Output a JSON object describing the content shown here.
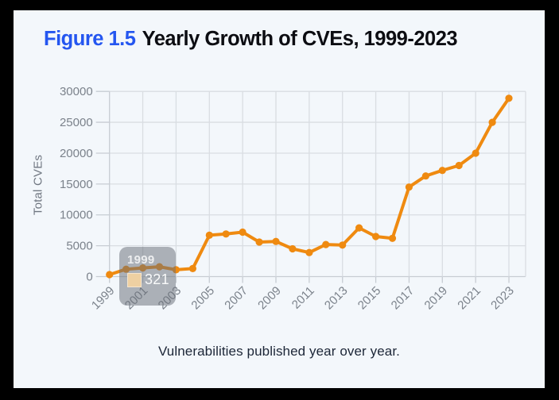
{
  "header": {
    "figure_label": "Figure 1.5",
    "title": "Yearly Growth of CVEs, 1999-2023"
  },
  "caption": "Vulnerabilities published year over year.",
  "tooltip": {
    "title": "1999",
    "value": "321",
    "swatch_color": "#eed0a2"
  },
  "colors": {
    "frame": "#000000",
    "background": "#f3f7fb",
    "figure_label_blue": "#2456f0",
    "title_text": "#0c0d12",
    "line_orange": "#ef8a10",
    "grid": "#d9dde2",
    "axis": "#c7ccd3",
    "tick_text": "#7b828b",
    "caption_text": "#1c2637",
    "tooltip_bg": "rgba(106,111,121,0.52)"
  },
  "chart_data": {
    "type": "line",
    "title": "Yearly Growth of CVEs, 1999-2023",
    "xlabel": "",
    "ylabel": "Total CVEs",
    "x": [
      1999,
      2000,
      2001,
      2002,
      2003,
      2004,
      2005,
      2006,
      2007,
      2008,
      2009,
      2010,
      2011,
      2012,
      2013,
      2014,
      2015,
      2016,
      2017,
      2018,
      2019,
      2020,
      2021,
      2022,
      2023
    ],
    "series": [
      {
        "name": "Total CVEs",
        "values": [
          321,
          1200,
          1400,
          1600,
          1100,
          1300,
          6700,
          6900,
          7200,
          5600,
          5700,
          4500,
          3900,
          5200,
          5100,
          7900,
          6500,
          6200,
          14500,
          16300,
          17200,
          18000,
          20000,
          25000,
          28900
        ]
      }
    ],
    "ylim": [
      0,
      30000
    ],
    "ytick_step": 5000,
    "ytick_labels": [
      "0",
      "5000",
      "10000",
      "15000",
      "20000",
      "25000",
      "30000"
    ],
    "xtick_labels": [
      "1999",
      "2001",
      "2003",
      "2005",
      "2007",
      "2009",
      "2011",
      "2013",
      "2015",
      "2017",
      "2019",
      "2021",
      "2023"
    ],
    "grid": true,
    "legend": false,
    "line_color": "#ef8a10",
    "x_labels_rotation_deg": -45
  }
}
